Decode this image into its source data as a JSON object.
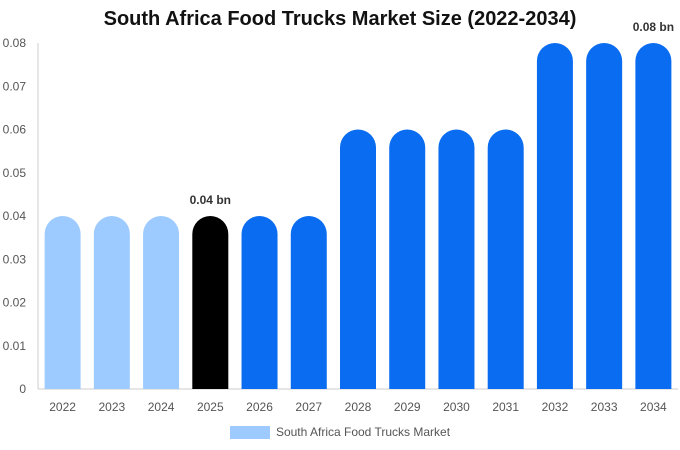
{
  "chart_data": {
    "type": "bar",
    "title": "South Africa Food Trucks Market Size (2022-2034)",
    "categories": [
      "2022",
      "2023",
      "2024",
      "2025",
      "2026",
      "2027",
      "2028",
      "2029",
      "2030",
      "2031",
      "2032",
      "2033",
      "2034"
    ],
    "series": [
      {
        "name": "South Africa Food Trucks Market",
        "values": [
          0.04,
          0.04,
          0.04,
          0.04,
          0.04,
          0.04,
          0.06,
          0.06,
          0.06,
          0.06,
          0.08,
          0.08,
          0.08
        ]
      }
    ],
    "ylim": [
      0,
      0.08
    ],
    "y_ticks": [
      "0",
      "0.01",
      "0.02",
      "0.03",
      "0.04",
      "0.05",
      "0.06",
      "0.07",
      "0.08"
    ],
    "data_labels": [
      {
        "category": "2025",
        "text": "0.04 bn"
      },
      {
        "category": "2034",
        "text": "0.08 bn"
      }
    ],
    "bar_colors": {
      "historical": "#9ecbff",
      "current": "#000000",
      "forecast": "#0a6cf0"
    },
    "bar_color_groups": [
      "historical",
      "historical",
      "historical",
      "current",
      "forecast",
      "forecast",
      "forecast",
      "forecast",
      "forecast",
      "forecast",
      "forecast",
      "forecast",
      "forecast"
    ],
    "legend": {
      "position": "bottom",
      "swatch_color": "#9ecbff"
    },
    "grid": false,
    "axis_color": "#cccccc"
  }
}
